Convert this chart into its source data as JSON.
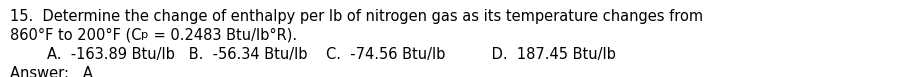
{
  "line1": "15.  Determine the change of enthalpy per lb of nitrogen gas as its temperature changes from",
  "line2a": "860°F to 200°F (C",
  "line2_sub": "p",
  "line2b": " = 0.2483 Btu/lb°R).",
  "line3": "        A.  -163.89 Btu/lb   B.  -56.34 Btu/lb    C.  -74.56 Btu/lb          D.  187.45 Btu/lb",
  "line4": "Answer:   A",
  "bg_color": "#ffffff",
  "text_color": "#000000",
  "font_size": 10.5,
  "fig_width": 9.18,
  "fig_height": 0.77,
  "dpi": 100
}
